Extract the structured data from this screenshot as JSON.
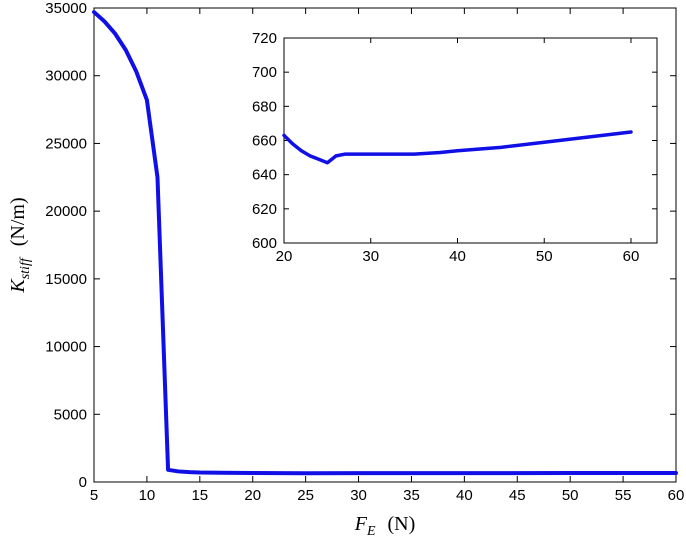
{
  "chart_data": [
    {
      "type": "line",
      "xlabel": {
        "symbol": "F",
        "subscript": "E",
        "unit": "(N)"
      },
      "ylabel": {
        "symbol": "K",
        "subscript": "stiff",
        "unit": "(N/m)"
      },
      "xlim": [
        5,
        60
      ],
      "ylim": [
        0,
        35000
      ],
      "xticks": [
        5,
        10,
        15,
        20,
        25,
        30,
        35,
        40,
        45,
        50,
        55,
        60
      ],
      "yticks": [
        0,
        5000,
        10000,
        15000,
        20000,
        25000,
        30000,
        35000
      ],
      "grid": false,
      "series": [
        {
          "color": "#1010e6",
          "x": [
            5,
            6,
            7,
            8,
            9,
            10,
            11,
            12,
            13,
            14,
            15,
            17,
            20,
            25,
            30,
            40,
            50,
            60
          ],
          "y": [
            34700,
            34000,
            33100,
            31900,
            30300,
            28200,
            22500,
            900,
            780,
            730,
            700,
            680,
            665,
            648,
            652,
            654,
            660,
            665
          ]
        }
      ]
    },
    {
      "type": "line",
      "inset": true,
      "xlim": [
        20,
        63
      ],
      "ylim": [
        600,
        720
      ],
      "xticks": [
        20,
        30,
        40,
        50,
        60
      ],
      "yticks": [
        600,
        620,
        640,
        660,
        680,
        700,
        720
      ],
      "grid": false,
      "series": [
        {
          "color": "#1010e6",
          "x": [
            20,
            21,
            22,
            23,
            24,
            25,
            26,
            27,
            28,
            30,
            32,
            35,
            38,
            40,
            45,
            50,
            55,
            60
          ],
          "y": [
            663,
            658,
            654,
            651,
            649,
            647,
            651,
            652,
            652,
            652,
            652,
            652,
            653,
            654,
            656,
            659,
            662,
            665
          ]
        }
      ]
    }
  ]
}
